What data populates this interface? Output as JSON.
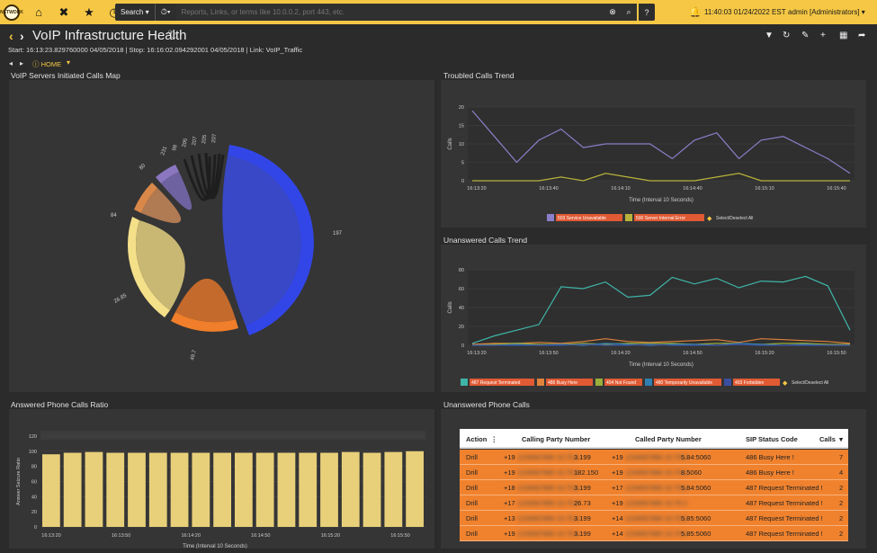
{
  "topbar": {
    "logo_text": "NETWORK",
    "search_label": "Search ▾",
    "history_label": "⏱▾",
    "search_placeholder": "Reports, Links, or terms like 10.0.0.2, port 443, etc.",
    "help_label": "?",
    "clock": "11:40:03 01/24/2022 EST",
    "user": "admin [Administrators] ▾"
  },
  "header": {
    "title": "VoIP Infrastructure Health",
    "meta": "Start: 16:13:23.829760000 04/05/2018 | Stop: 16:16:02.094292001 04/05/2018 | Link: VoIP_Traffic",
    "breadcrumb": "HOME"
  },
  "panels": {
    "map_title": "VoIP Servers Initiated Calls Map",
    "troubled_title": "Troubled Calls Trend",
    "unanswered_trend_title": "Unanswered Calls Trend",
    "ratio_title": "Answered Phone Calls Ratio",
    "unanswered_calls_title": "Unanswered Phone Calls"
  },
  "chord": {
    "labels": [
      "197",
      "49.7",
      "26.85",
      "84",
      "80",
      "231",
      "98",
      "205",
      "207",
      "205",
      "207"
    ]
  },
  "chart_data": [
    {
      "type": "line",
      "title": "Troubled Calls Trend",
      "xlabel": "Time (Interval 10 Seconds)",
      "ylabel": "Calls",
      "ylim": [
        0,
        20
      ],
      "yticks": [
        "0",
        "5",
        "10",
        "15",
        "20"
      ],
      "xticks": [
        "16:13:20",
        "16:13:40",
        "16:14:10",
        "16:14:40",
        "16:15:10",
        "16:15:40"
      ],
      "legend_placement": "bottom",
      "series": [
        {
          "name": "503 Service Unavailable",
          "color": "#8a7fc9",
          "values": [
            19,
            12,
            5,
            11,
            14,
            9,
            10,
            10,
            10,
            6,
            11,
            13,
            6,
            11,
            12,
            9,
            6,
            2
          ]
        },
        {
          "name": "500 Server Internal Error",
          "color": "#b8b33a",
          "values": [
            0,
            0,
            0,
            0,
            1,
            0,
            2,
            1,
            0,
            0,
            0,
            1,
            2,
            0,
            0,
            0,
            0,
            0
          ]
        }
      ],
      "select_all": "Select/Deselect All"
    },
    {
      "type": "line",
      "title": "Unanswered Calls Trend",
      "xlabel": "Time (Interval 10 Seconds)",
      "ylabel": "Calls",
      "ylim": [
        0,
        80
      ],
      "yticks": [
        "0",
        "20",
        "40",
        "60",
        "80"
      ],
      "xticks": [
        "16:13:20",
        "16:13:50",
        "16:14:20",
        "16:14:50",
        "16:15:20",
        "16:15:50"
      ],
      "legend_placement": "bottom",
      "series": [
        {
          "name": "487 Request Terminated",
          "color": "#3fb5a8",
          "values": [
            2,
            10,
            16,
            22,
            62,
            60,
            67,
            51,
            53,
            72,
            65,
            71,
            61,
            68,
            67,
            73,
            63,
            16
          ]
        },
        {
          "name": "486 Busy Here",
          "color": "#e0823c",
          "values": [
            1,
            2,
            2,
            3,
            2,
            4,
            7,
            4,
            3,
            4,
            5,
            6,
            3,
            7,
            6,
            5,
            4,
            2
          ]
        },
        {
          "name": "404 Not Found",
          "color": "#9aae3a",
          "values": [
            0,
            1,
            2,
            1,
            1,
            2,
            1,
            2,
            2,
            2,
            1,
            2,
            2,
            1,
            2,
            2,
            1,
            1
          ]
        },
        {
          "name": "480 Temporarily Unavailable",
          "color": "#2f7fb0",
          "values": [
            0,
            0,
            1,
            0,
            1,
            0,
            2,
            1,
            0,
            1,
            1,
            0,
            2,
            1,
            0,
            1,
            0,
            0
          ]
        },
        {
          "name": "403 Forbidden",
          "color": "#3a4fa0",
          "values": [
            0,
            0,
            0,
            0,
            0,
            1,
            0,
            0,
            1,
            0,
            0,
            0,
            1,
            0,
            0,
            0,
            0,
            0
          ]
        }
      ],
      "select_all": "Select/Deselect All"
    },
    {
      "type": "bar",
      "title": "Answered Phone Calls Ratio",
      "xlabel": "Time (Interval 10 Seconds)",
      "ylabel": "Answer Seizure Ratio",
      "ylim": [
        0,
        120
      ],
      "yticks": [
        "0",
        "20",
        "40",
        "60",
        "80",
        "100",
        "120"
      ],
      "xticks": [
        "16:13:20",
        "16:13:50",
        "16:14:20",
        "16:14:50",
        "16:15:20",
        "16:15:50"
      ],
      "color": "#e8cf7a",
      "values": [
        96,
        98,
        99,
        98,
        98,
        98,
        98,
        98,
        98,
        98,
        98,
        98,
        98,
        98,
        99,
        98,
        99,
        100
      ]
    }
  ],
  "table": {
    "headers": [
      "Action",
      "Calling Party Number",
      "Called Party Number",
      "SIP Status Code",
      "Calls"
    ],
    "rows": [
      {
        "action": "Drill",
        "calling": "+19",
        "calling_tail": "3.199",
        "called": "+19",
        "called_tail": "5.84:5060",
        "status": "486 Busy Here",
        "calls": "7"
      },
      {
        "action": "Drill",
        "calling": "+19",
        "calling_tail": "182.150",
        "called": "+19",
        "called_tail": "8.5060",
        "status": "486 Busy Here",
        "calls": "4"
      },
      {
        "action": "Drill",
        "calling": "+18",
        "calling_tail": "3.199",
        "called": "+17",
        "called_tail": "5.84:5060",
        "status": "487 Request Terminated",
        "calls": "2"
      },
      {
        "action": "Drill",
        "calling": "+17",
        "calling_tail": "26.73",
        "called": "+19",
        "called_tail": "",
        "status": "487 Request Terminated",
        "calls": "2"
      },
      {
        "action": "Drill",
        "calling": "+13",
        "calling_tail": "3.199",
        "called": "+14",
        "called_tail": "5.85:5060",
        "status": "487 Request Terminated",
        "calls": "2"
      },
      {
        "action": "Drill",
        "calling": "+19",
        "calling_tail": "3.199",
        "called": "+14",
        "called_tail": "5.85:5060",
        "status": "487 Request Terminated",
        "calls": "2"
      }
    ]
  }
}
